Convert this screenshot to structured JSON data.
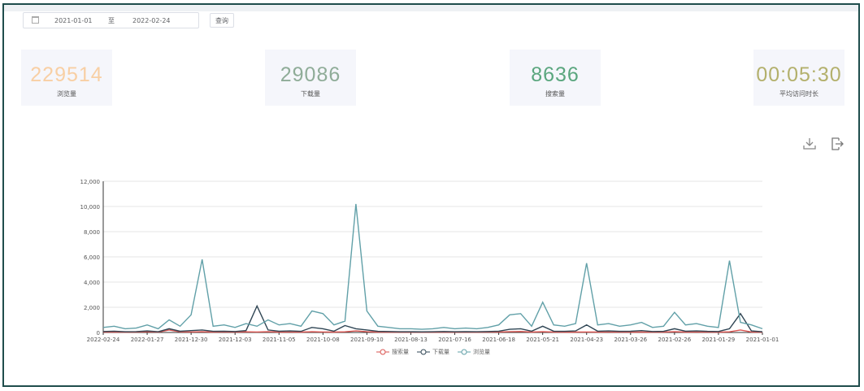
{
  "filter": {
    "start_date": "2021-01-01",
    "separator": "至",
    "end_date": "2022-02-24",
    "query_label": "查询",
    "calendar_icon": "calendar-icon"
  },
  "stats": [
    {
      "value": "229514",
      "label": "浏览量",
      "color": "#f8cfa4"
    },
    {
      "value": "29086",
      "label": "下载量",
      "color": "#8fac98"
    },
    {
      "value": "8636",
      "label": "搜索量",
      "color": "#5aa67e"
    },
    {
      "value": "00:05:30",
      "label": "平均访问时长",
      "color": "#b3b06c"
    }
  ],
  "toolbox": {
    "download_icon": "download-icon",
    "export_icon": "export-icon"
  },
  "chart_data": {
    "type": "line",
    "ylim": [
      0,
      12000
    ],
    "yticks": [
      "0",
      "2,000",
      "4,000",
      "6,000",
      "8,000",
      "10,000",
      "12,000"
    ],
    "xticks": [
      "2022-02-24",
      "2022-01-27",
      "2021-12-30",
      "2021-12-03",
      "2021-11-05",
      "2021-10-08",
      "2021-09-10",
      "2021-08-13",
      "2021-07-16",
      "2021-06-18",
      "2021-05-21",
      "2021-04-23",
      "2021-03-26",
      "2021-02-26",
      "2021-01-29",
      "2021-01-01"
    ],
    "x_start": "2022-02-24",
    "x_end": "2021-01-01",
    "grid": true,
    "legend_position": "bottom",
    "series": [
      {
        "name": "搜索量",
        "color": "#d9534f",
        "values": [
          30,
          40,
          20,
          30,
          60,
          30,
          200,
          50,
          40,
          60,
          30,
          40,
          30,
          50,
          40,
          60,
          30,
          40,
          30,
          60,
          40,
          30,
          50,
          120,
          60,
          30,
          20,
          20,
          20,
          20,
          20,
          30,
          20,
          20,
          20,
          30,
          40,
          60,
          80,
          30,
          60,
          30,
          20,
          30,
          40,
          30,
          40,
          30,
          30,
          40,
          20,
          30,
          60,
          30,
          40,
          30,
          20,
          50,
          200,
          40,
          20
        ]
      },
      {
        "name": "下载量",
        "color": "#2f4554",
        "values": [
          80,
          100,
          60,
          70,
          120,
          60,
          300,
          100,
          150,
          200,
          90,
          100,
          80,
          150,
          2100,
          200,
          100,
          120,
          90,
          400,
          300,
          100,
          550,
          300,
          200,
          90,
          80,
          60,
          60,
          50,
          60,
          80,
          60,
          70,
          60,
          80,
          100,
          250,
          300,
          100,
          500,
          100,
          90,
          120,
          600,
          100,
          120,
          90,
          100,
          150,
          80,
          90,
          300,
          100,
          120,
          90,
          80,
          300,
          1500,
          120,
          60
        ]
      },
      {
        "name": "浏览量",
        "color": "#61a0a8",
        "values": [
          400,
          500,
          300,
          350,
          600,
          300,
          1000,
          500,
          1400,
          5800,
          500,
          600,
          400,
          700,
          500,
          1000,
          600,
          700,
          500,
          1700,
          1500,
          600,
          900,
          10200,
          1700,
          500,
          400,
          300,
          300,
          250,
          300,
          400,
          300,
          350,
          300,
          400,
          600,
          1400,
          1500,
          500,
          2400,
          600,
          500,
          700,
          5500,
          600,
          700,
          500,
          600,
          800,
          400,
          500,
          1600,
          600,
          700,
          500,
          400,
          5700,
          800,
          600,
          300
        ]
      }
    ]
  }
}
